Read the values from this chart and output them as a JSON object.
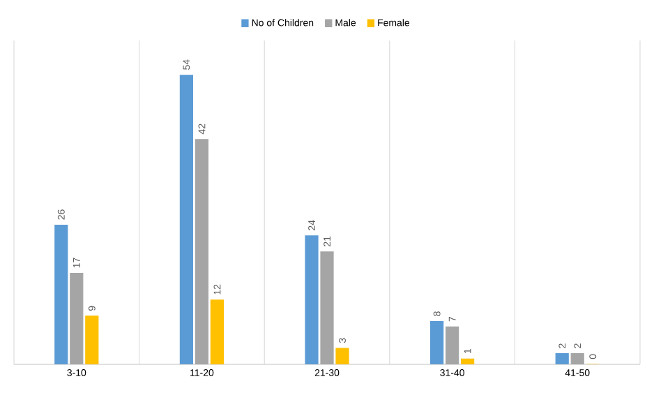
{
  "chart_data": {
    "type": "bar",
    "categories": [
      "3-10",
      "11-20",
      "21-30",
      "31-40",
      "41-50"
    ],
    "series": [
      {
        "name": "No of Children",
        "color": "#5b9bd5",
        "values": [
          26,
          54,
          24,
          8,
          2
        ]
      },
      {
        "name": "Male",
        "color": "#a5a5a5",
        "values": [
          17,
          42,
          21,
          7,
          2
        ]
      },
      {
        "name": "Female",
        "color": "#ffc000",
        "values": [
          9,
          12,
          3,
          1,
          0
        ]
      }
    ],
    "data_labels": true,
    "grid": "x",
    "legend": "top"
  }
}
